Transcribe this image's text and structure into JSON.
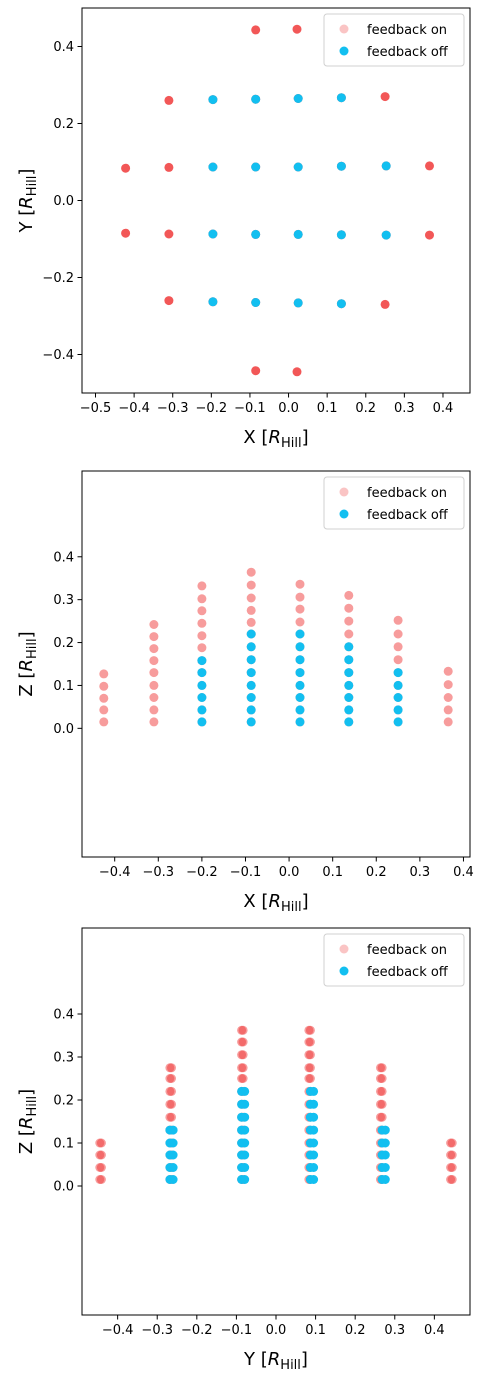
{
  "legend": {
    "on_label": "feedback on",
    "off_label": "feedback off",
    "on_color": "#f03a3a",
    "off_color": "#12bff0"
  },
  "chart_data": [
    {
      "type": "scatter",
      "xlabel_main": "X",
      "xlabel_sub": "Hill",
      "ylabel_main": "Y",
      "ylabel_sub": "Hill",
      "xlim": [
        -0.535,
        0.47
      ],
      "ylim": [
        -0.5,
        0.5
      ],
      "xticks": [
        -0.5,
        -0.4,
        -0.3,
        -0.2,
        -0.1,
        0.0,
        0.1,
        0.2,
        0.3,
        0.4
      ],
      "yticks": [
        -0.4,
        -0.2,
        0.0,
        0.2,
        0.4
      ],
      "legend_position": "top-right",
      "series": [
        {
          "name": "feedback on",
          "points": [
            [
              -0.085,
              0.443
            ],
            [
              0.022,
              0.445
            ],
            [
              -0.31,
              0.26
            ],
            [
              -0.196,
              0.262
            ],
            [
              -0.085,
              0.263
            ],
            [
              0.025,
              0.265
            ],
            [
              0.137,
              0.267
            ],
            [
              0.25,
              0.27
            ],
            [
              -0.422,
              0.084
            ],
            [
              -0.31,
              0.086
            ],
            [
              -0.196,
              0.087
            ],
            [
              -0.085,
              0.087
            ],
            [
              0.025,
              0.087
            ],
            [
              0.137,
              0.089
            ],
            [
              0.253,
              0.09
            ],
            [
              0.365,
              0.09
            ],
            [
              -0.422,
              -0.085
            ],
            [
              -0.31,
              -0.087
            ],
            [
              -0.196,
              -0.087
            ],
            [
              -0.085,
              -0.088
            ],
            [
              0.025,
              -0.088
            ],
            [
              0.137,
              -0.089
            ],
            [
              0.253,
              -0.09
            ],
            [
              0.365,
              -0.09
            ],
            [
              -0.31,
              -0.26
            ],
            [
              -0.196,
              -0.263
            ],
            [
              -0.085,
              -0.265
            ],
            [
              0.025,
              -0.266
            ],
            [
              0.137,
              -0.268
            ],
            [
              0.25,
              -0.27
            ],
            [
              -0.085,
              -0.442
            ],
            [
              0.022,
              -0.445
            ]
          ]
        },
        {
          "name": "feedback off",
          "points": [
            [
              -0.196,
              0.262
            ],
            [
              -0.085,
              0.263
            ],
            [
              0.025,
              0.265
            ],
            [
              0.137,
              0.267
            ],
            [
              -0.196,
              0.087
            ],
            [
              -0.085,
              0.087
            ],
            [
              0.025,
              0.087
            ],
            [
              0.137,
              0.089
            ],
            [
              0.253,
              0.09
            ],
            [
              -0.196,
              -0.087
            ],
            [
              -0.085,
              -0.088
            ],
            [
              0.025,
              -0.088
            ],
            [
              0.137,
              -0.089
            ],
            [
              0.253,
              -0.09
            ],
            [
              -0.196,
              -0.263
            ],
            [
              -0.085,
              -0.265
            ],
            [
              0.025,
              -0.266
            ],
            [
              0.137,
              -0.268
            ]
          ]
        }
      ]
    },
    {
      "type": "scatter",
      "xlabel_main": "X",
      "xlabel_sub": "Hill",
      "ylabel_main": "Z",
      "ylabel_sub": "Hill",
      "xlim": [
        -0.475,
        0.415
      ],
      "ylim": [
        -0.3,
        0.6
      ],
      "xticks": [
        -0.4,
        -0.3,
        -0.2,
        -0.1,
        0.0,
        0.1,
        0.2,
        0.3,
        0.4
      ],
      "yticks": [
        0.0,
        0.1,
        0.2,
        0.3,
        0.4
      ],
      "legend_position": "top-right",
      "series": [
        {
          "name": "feedback on",
          "columns": [
            {
              "x": -0.425,
              "z": [
                0.015,
                0.043,
                0.07,
                0.098,
                0.127
              ]
            },
            {
              "x": -0.31,
              "z": [
                0.015,
                0.043,
                0.072,
                0.1,
                0.13,
                0.158,
                0.186,
                0.214,
                0.242
              ]
            },
            {
              "x": -0.2,
              "z": [
                0.015,
                0.043,
                0.072,
                0.1,
                0.13,
                0.158,
                0.188,
                0.216,
                0.245,
                0.274,
                0.302,
                0.332
              ]
            },
            {
              "x": -0.087,
              "z": [
                0.015,
                0.043,
                0.072,
                0.1,
                0.13,
                0.16,
                0.19,
                0.22,
                0.247,
                0.275,
                0.304,
                0.334,
                0.364
              ]
            },
            {
              "x": 0.025,
              "z": [
                0.015,
                0.043,
                0.072,
                0.1,
                0.13,
                0.16,
                0.19,
                0.22,
                0.248,
                0.278,
                0.306,
                0.336
              ]
            },
            {
              "x": 0.137,
              "z": [
                0.015,
                0.043,
                0.072,
                0.1,
                0.13,
                0.16,
                0.19,
                0.22,
                0.25,
                0.28,
                0.31
              ]
            },
            {
              "x": 0.25,
              "z": [
                0.015,
                0.043,
                0.072,
                0.1,
                0.13,
                0.16,
                0.19,
                0.22,
                0.252
              ]
            },
            {
              "x": 0.365,
              "z": [
                0.015,
                0.043,
                0.072,
                0.102,
                0.133
              ]
            }
          ]
        },
        {
          "name": "feedback off",
          "columns": [
            {
              "x": -0.2,
              "z": [
                0.015,
                0.043,
                0.072,
                0.1,
                0.13,
                0.158
              ]
            },
            {
              "x": -0.087,
              "z": [
                0.015,
                0.043,
                0.072,
                0.1,
                0.13,
                0.16,
                0.19,
                0.22
              ]
            },
            {
              "x": 0.025,
              "z": [
                0.015,
                0.043,
                0.072,
                0.1,
                0.13,
                0.16,
                0.19,
                0.22
              ]
            },
            {
              "x": 0.137,
              "z": [
                0.015,
                0.043,
                0.072,
                0.1,
                0.13,
                0.16,
                0.19
              ]
            },
            {
              "x": 0.25,
              "z": [
                0.015,
                0.043,
                0.072,
                0.1,
                0.13
              ]
            }
          ]
        }
      ]
    },
    {
      "type": "scatter",
      "xlabel_main": "Y",
      "xlabel_sub": "Hill",
      "ylabel_main": "Z",
      "ylabel_sub": "Hill",
      "xlim": [
        -0.49,
        0.49
      ],
      "ylim": [
        -0.3,
        0.6
      ],
      "xticks": [
        -0.4,
        -0.3,
        -0.2,
        -0.1,
        0.0,
        0.1,
        0.2,
        0.3,
        0.4
      ],
      "yticks": [
        0.0,
        0.1,
        0.2,
        0.3,
        0.4
      ],
      "legend_position": "top-right",
      "series": [
        {
          "name": "feedback on",
          "columns": [
            {
              "x": -0.445,
              "z": [
                0.015,
                0.043,
                0.072,
                0.1
              ]
            },
            {
              "x": -0.268,
              "z": [
                0.015,
                0.043,
                0.072,
                0.1,
                0.13,
                0.16,
                0.19,
                0.22,
                0.25,
                0.275
              ]
            },
            {
              "x": -0.087,
              "z": [
                0.015,
                0.043,
                0.072,
                0.1,
                0.13,
                0.16,
                0.19,
                0.22,
                0.25,
                0.275,
                0.305,
                0.335,
                0.362
              ]
            },
            {
              "x": 0.087,
              "z": [
                0.015,
                0.043,
                0.072,
                0.1,
                0.13,
                0.16,
                0.19,
                0.22,
                0.25,
                0.275,
                0.305,
                0.335,
                0.362
              ]
            },
            {
              "x": 0.268,
              "z": [
                0.015,
                0.043,
                0.072,
                0.1,
                0.13,
                0.16,
                0.19,
                0.22,
                0.25,
                0.275
              ]
            },
            {
              "x": 0.445,
              "z": [
                0.015,
                0.043,
                0.072,
                0.1
              ]
            }
          ]
        },
        {
          "name": "feedback off",
          "columns": [
            {
              "x": -0.268,
              "z": [
                0.015,
                0.043,
                0.072,
                0.1,
                0.13
              ]
            },
            {
              "x": -0.087,
              "z": [
                0.015,
                0.043,
                0.072,
                0.1,
                0.13,
                0.16,
                0.19,
                0.22
              ]
            },
            {
              "x": 0.087,
              "z": [
                0.015,
                0.043,
                0.072,
                0.1,
                0.13,
                0.16,
                0.19,
                0.22
              ]
            },
            {
              "x": 0.268,
              "z": [
                0.015,
                0.043,
                0.072,
                0.1,
                0.13
              ]
            }
          ]
        }
      ]
    }
  ]
}
